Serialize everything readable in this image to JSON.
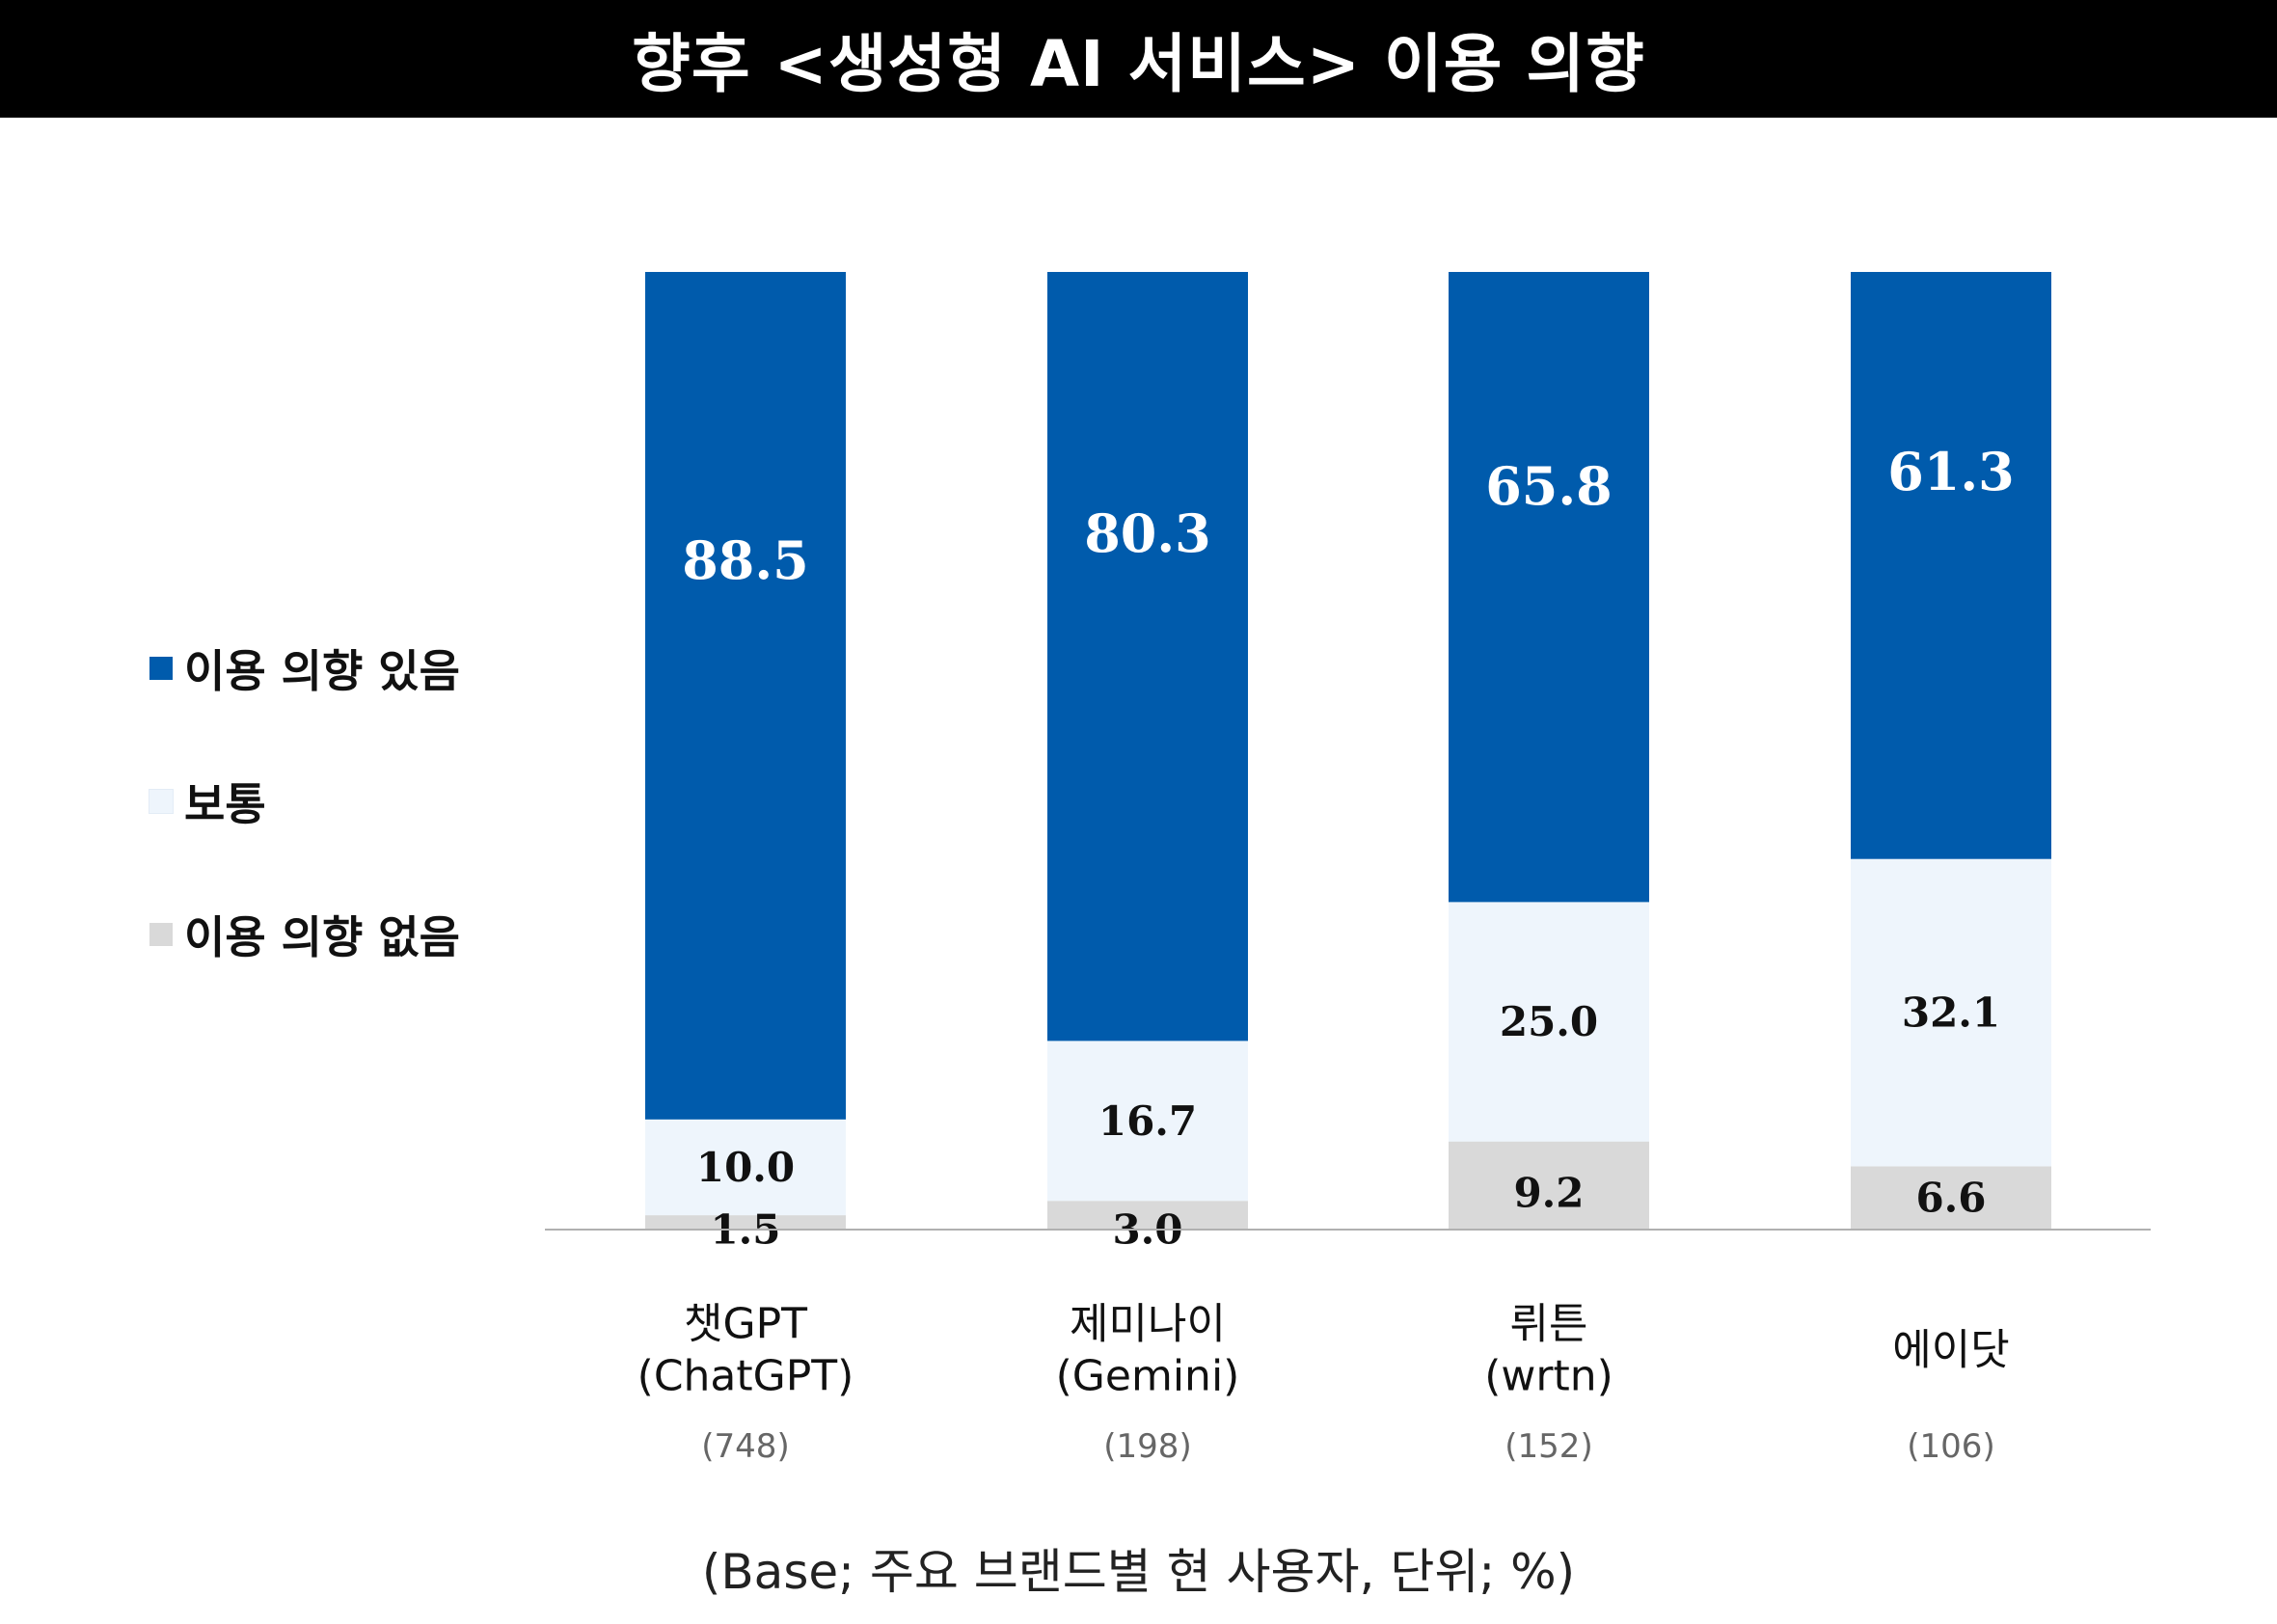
{
  "title": "향후 <생성형 AI 서비스> 이용 의향",
  "footnote": "(Base; 주요 브랜드별 현 사용자, 단위; %)",
  "colors": {
    "positive": "#005BAC",
    "neutral": "#EEF5FC",
    "negative": "#D9D9D9",
    "axis": "#B0B0B0"
  },
  "legend": [
    {
      "label": "이용 의향 있음",
      "color": "#005BAC"
    },
    {
      "label": "보통",
      "color": "#EEF5FC"
    },
    {
      "label": "이용 의향 없음",
      "color": "#D9D9D9"
    }
  ],
  "chart_data": {
    "type": "bar",
    "stacked": true,
    "categories": [
      {
        "name": "챗GPT",
        "sub": "(ChatGPT)",
        "base": "(748)"
      },
      {
        "name": "제미나이",
        "sub": "(Gemini)",
        "base": "(198)"
      },
      {
        "name": "뤼튼",
        "sub": "(wrtn)",
        "base": "(152)"
      },
      {
        "name": "에이닷",
        "sub": "",
        "base": "(106)"
      }
    ],
    "series": [
      {
        "name": "이용 의향 없음",
        "values": [
          1.5,
          3.0,
          9.2,
          6.6
        ],
        "labels": [
          "1.5",
          "3.0",
          "9.2",
          "6.6"
        ]
      },
      {
        "name": "보통",
        "values": [
          10.0,
          16.7,
          25.0,
          32.1
        ],
        "labels": [
          "10.0",
          "16.7",
          "25.0",
          "32.1"
        ]
      },
      {
        "name": "이용 의향 있음",
        "values": [
          88.5,
          80.3,
          65.8,
          61.3
        ],
        "labels": [
          "88.5",
          "80.3",
          "65.8",
          "61.3"
        ]
      }
    ],
    "ylim": [
      0,
      100
    ],
    "legend_position": "left",
    "grid": false
  }
}
